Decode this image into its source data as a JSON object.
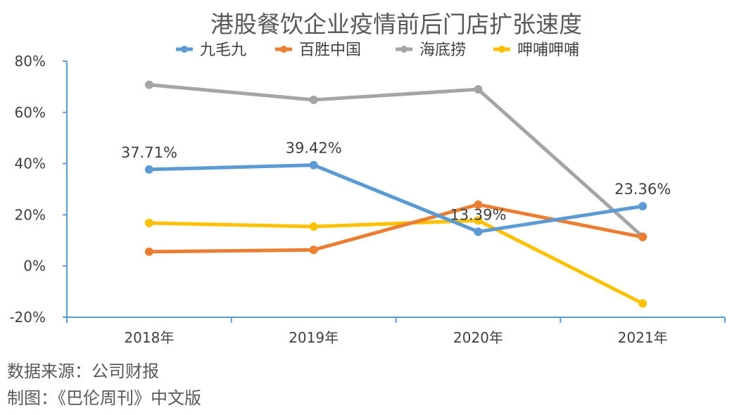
{
  "chart_data": {
    "type": "line",
    "title": "港股餐饮企业疫情前后门店扩张速度",
    "categories": [
      "2018年",
      "2019年",
      "2020年",
      "2021年"
    ],
    "yticks": [
      "80%",
      "60%",
      "40%",
      "20%",
      "0%",
      "-20%"
    ],
    "ylim": [
      -20,
      80
    ],
    "series": [
      {
        "name": "九毛九",
        "color": "#5B9BD5",
        "values": [
          37.71,
          39.42,
          13.39,
          23.36
        ],
        "labels": [
          "37.71%",
          "39.42%",
          "13.39%",
          "23.36%"
        ]
      },
      {
        "name": "百胜中国",
        "color": "#ED7D31",
        "values": [
          5.6,
          6.3,
          24.0,
          11.3
        ]
      },
      {
        "name": "海底捞",
        "color": "#A5A5A5",
        "values": [
          70.8,
          64.9,
          69.0,
          11.5
        ]
      },
      {
        "name": "呷哺呷哺",
        "color": "#FFC000",
        "values": [
          16.8,
          15.4,
          17.8,
          -14.6
        ]
      }
    ],
    "label_series": "九毛九",
    "legend_position": "top"
  },
  "footer": {
    "source": "数据来源：公司财报",
    "credit": "制图：《巴伦周刊》中文版"
  }
}
